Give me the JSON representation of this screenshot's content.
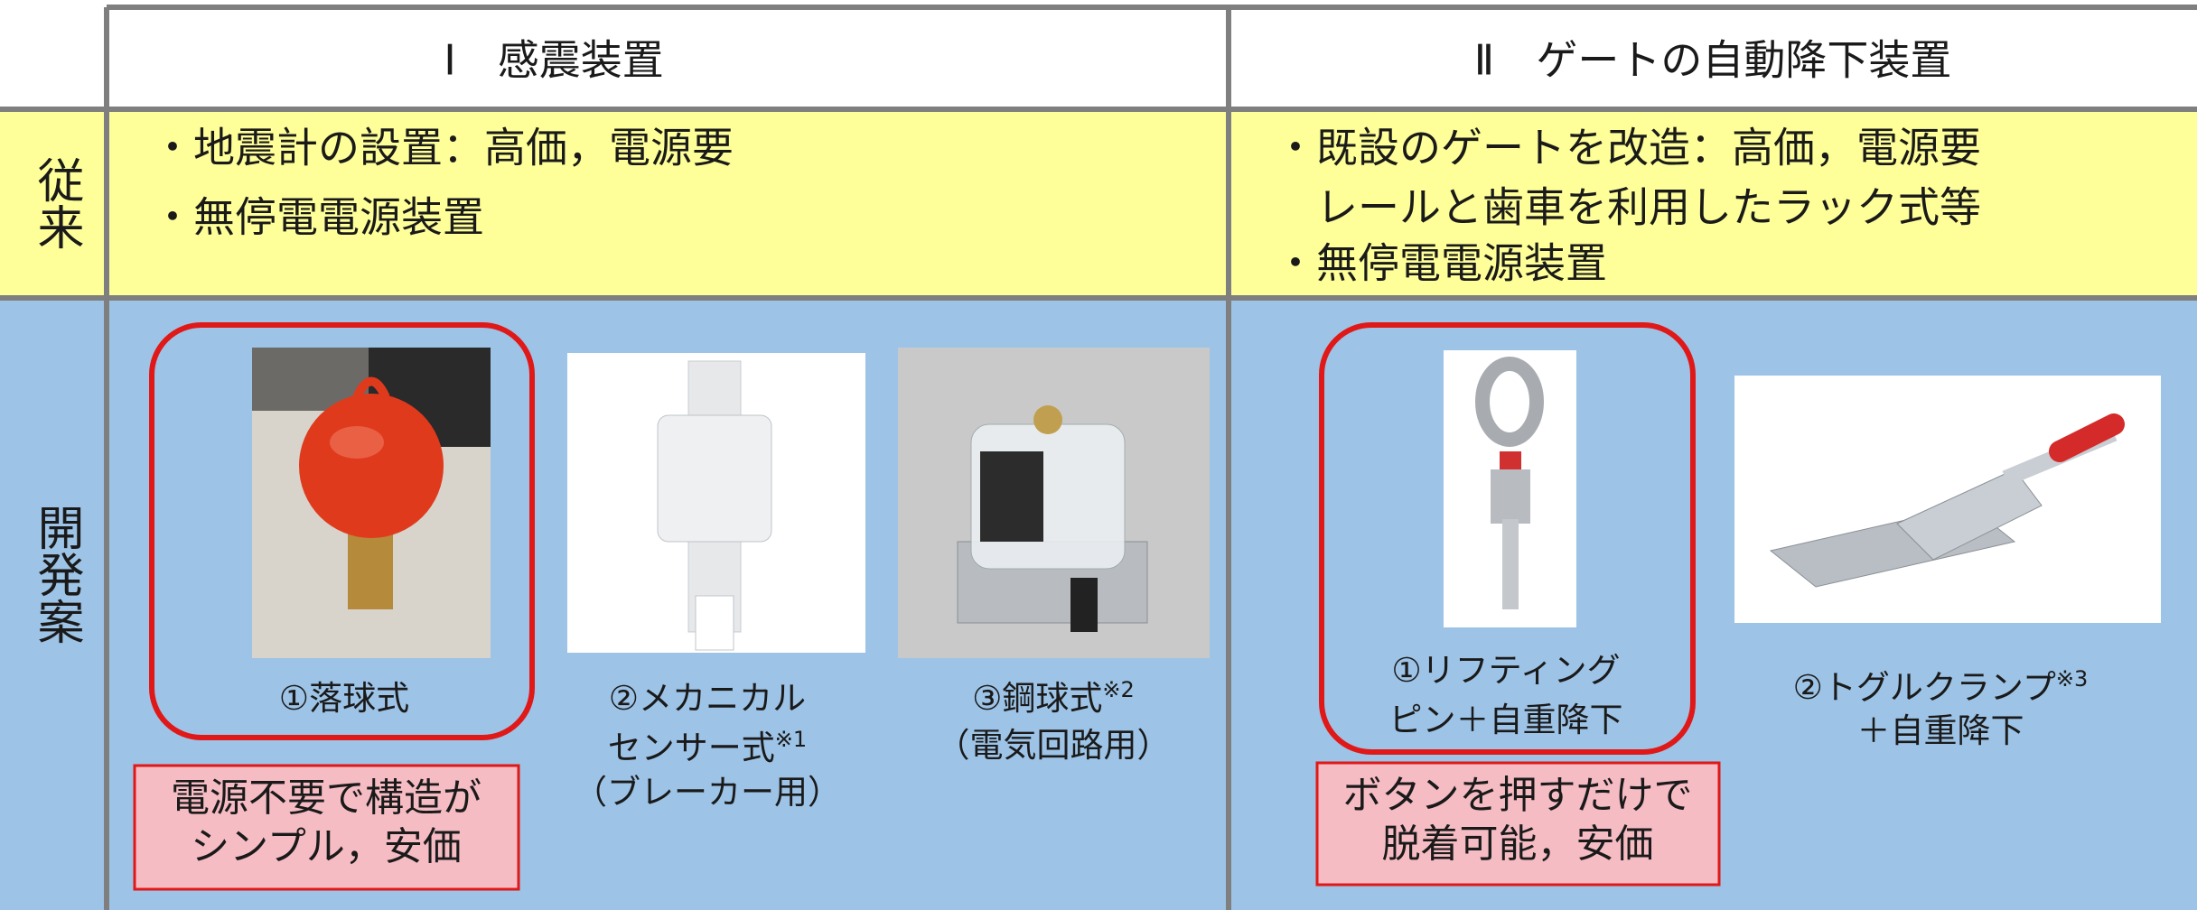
{
  "header": {
    "col1": "Ⅰ　感震装置",
    "col2": "Ⅱ　ゲートの自動降下装置"
  },
  "conventional": {
    "label": "従来",
    "col1": [
      "・地震計の設置：高価，電源要",
      "・無停電電源装置"
    ],
    "col2": [
      "・既設のゲートを改造：高価，電源要",
      "　レールと歯車を利用したラック式等",
      "・無停電電源装置"
    ]
  },
  "proposal": {
    "label": "開発案",
    "col1": {
      "items": [
        {
          "lines": [
            {
              "text": "①落球式"
            }
          ]
        },
        {
          "lines": [
            {
              "text": "②メカニカル"
            },
            {
              "text": "センサー式",
              "sup": "※1"
            },
            {
              "text": "（ブレーカー用）"
            }
          ]
        },
        {
          "lines": [
            {
              "text": "③鋼球式",
              "sup": "※2"
            },
            {
              "text": "（電気回路用）"
            }
          ]
        }
      ],
      "note": [
        "電源不要で構造が",
        "シンプル，安価"
      ]
    },
    "col2": {
      "items": [
        {
          "lines": [
            {
              "text": "①リフティング"
            },
            {
              "text": "ピン＋自重降下"
            }
          ]
        },
        {
          "lines": [
            {
              "text": "②トグルクランプ",
              "sup": "※3"
            },
            {
              "text": "＋自重降下"
            }
          ]
        }
      ],
      "note": [
        "ボタンを押すだけで",
        "脱着可能，安価"
      ]
    }
  }
}
